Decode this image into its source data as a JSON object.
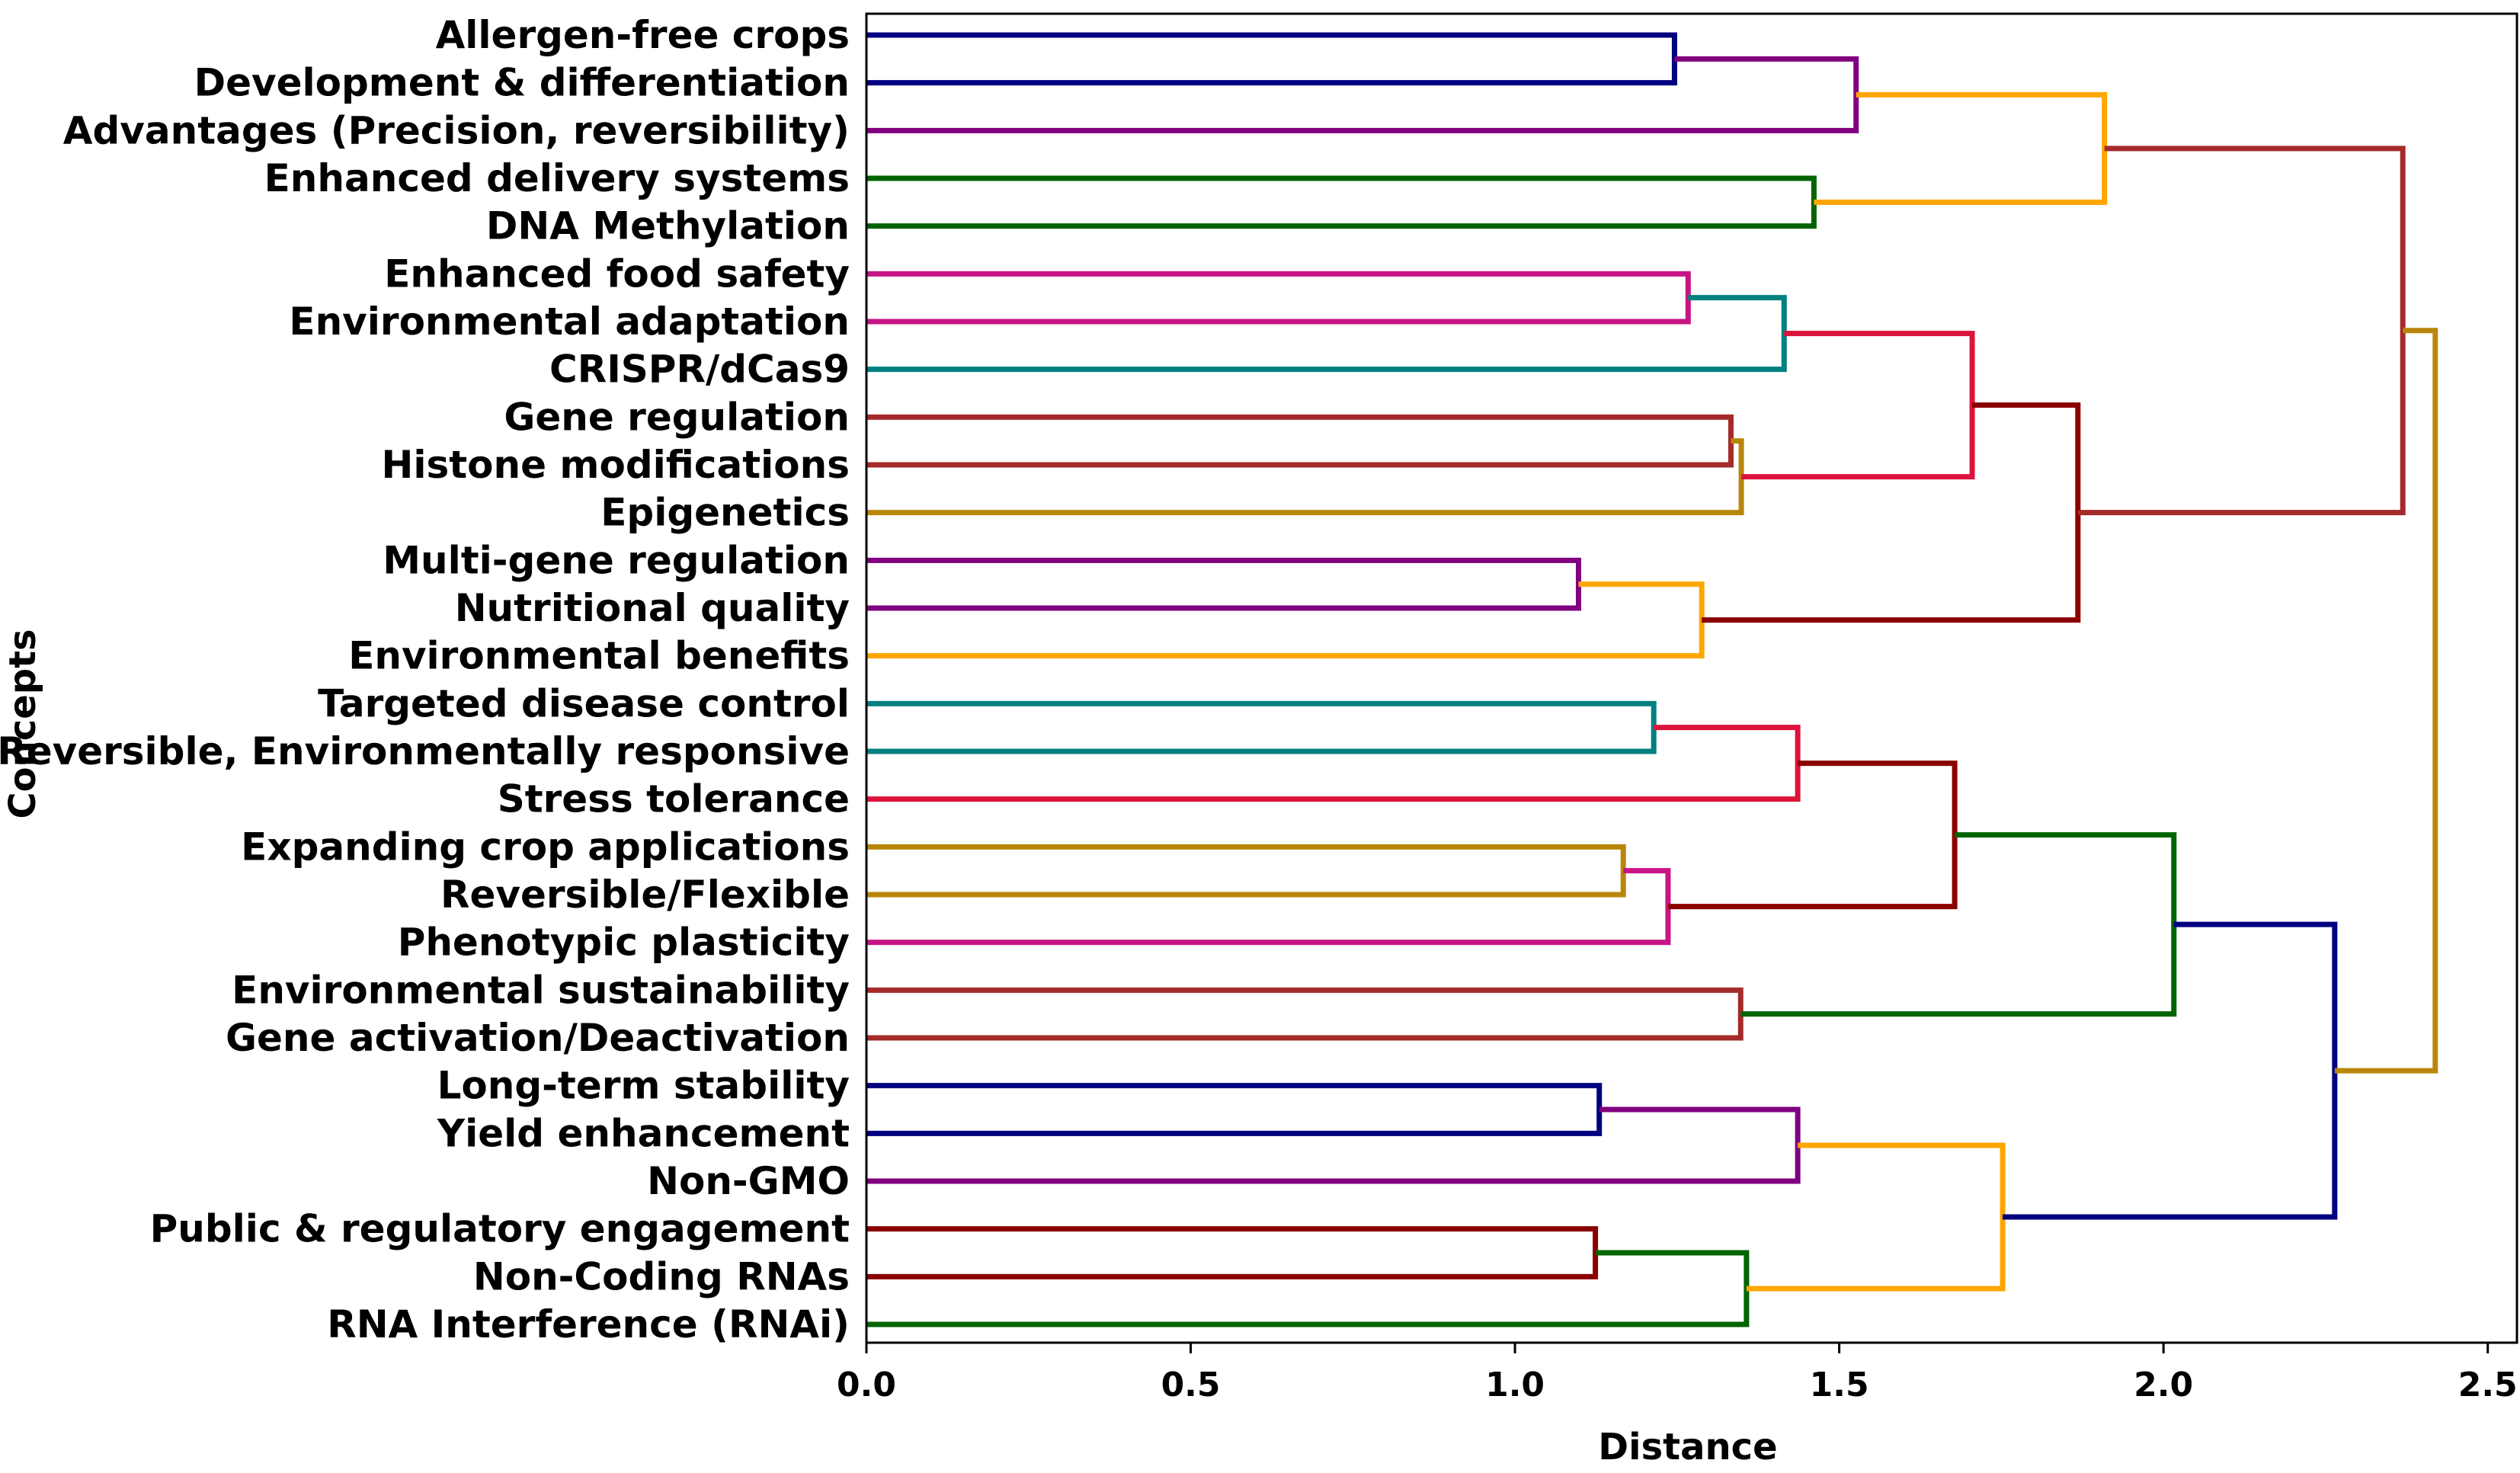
{
  "chart_data": {
    "type": "dendrogram",
    "orientation": "right",
    "xlabel": "Distance",
    "ylabel": "Concepts",
    "xlim": [
      0,
      2.545
    ],
    "xticks": [
      0.0,
      0.5,
      1.0,
      1.5,
      2.0,
      2.5
    ],
    "xtick_labels": [
      "0.0",
      "0.5",
      "1.0",
      "1.5",
      "2.0",
      "2.5"
    ],
    "grid": false,
    "leaves": [
      "Allergen-free crops",
      "Development & differentiation",
      "Advantages (Precision, reversibility)",
      "Enhanced delivery systems",
      "DNA Methylation",
      "Enhanced food safety",
      "Environmental adaptation",
      "CRISPR/dCas9",
      "Gene regulation",
      "Histone modifications",
      "Epigenetics",
      "Multi-gene regulation",
      "Nutritional quality",
      "Environmental benefits",
      "Targeted disease control",
      "Reversible, Environmentally responsive",
      "Stress tolerance",
      "Expanding crop applications",
      "Reversible/Flexible",
      "Phenotypic plasticity",
      "Environmental sustainability",
      "Gene activation/Deactivation",
      "Long-term stability",
      "Yield enhancement",
      "Non-GMO",
      "Public & regulatory engagement",
      "Non-Coding RNAs",
      "RNA Interference (RNAi)"
    ],
    "merges": [
      {
        "id": "A",
        "children": [
          "L0",
          "L1"
        ],
        "distance": 1.246,
        "color": "#000080"
      },
      {
        "id": "B",
        "children": [
          "A",
          "L2"
        ],
        "distance": 1.526,
        "color": "#800080"
      },
      {
        "id": "C",
        "children": [
          "L3",
          "L4"
        ],
        "distance": 1.461,
        "color": "#006400"
      },
      {
        "id": "D",
        "children": [
          "B",
          "C"
        ],
        "distance": 1.909,
        "color": "#FFA500"
      },
      {
        "id": "E",
        "children": [
          "L5",
          "L6"
        ],
        "distance": 1.267,
        "color": "#C71585"
      },
      {
        "id": "F",
        "children": [
          "E",
          "L7"
        ],
        "distance": 1.415,
        "color": "#008080"
      },
      {
        "id": "G",
        "children": [
          "L8",
          "L9"
        ],
        "distance": 1.333,
        "color": "#A52A2A"
      },
      {
        "id": "H",
        "children": [
          "G",
          "L10"
        ],
        "distance": 1.349,
        "color": "#B8860B"
      },
      {
        "id": "I",
        "children": [
          "F",
          "H"
        ],
        "distance": 1.705,
        "color": "#DC143C"
      },
      {
        "id": "J",
        "children": [
          "L11",
          "L12"
        ],
        "distance": 1.098,
        "color": "#800080"
      },
      {
        "id": "K",
        "children": [
          "J",
          "L13"
        ],
        "distance": 1.288,
        "color": "#FFA500"
      },
      {
        "id": "L",
        "children": [
          "I",
          "K"
        ],
        "distance": 1.868,
        "color": "#8B0000"
      },
      {
        "id": "M",
        "children": [
          "D",
          "L"
        ],
        "distance": 2.369,
        "color": "#A52A2A"
      },
      {
        "id": "N",
        "children": [
          "L14",
          "L15"
        ],
        "distance": 1.214,
        "color": "#008080"
      },
      {
        "id": "O",
        "children": [
          "N",
          "L16"
        ],
        "distance": 1.436,
        "color": "#DC143C"
      },
      {
        "id": "P",
        "children": [
          "L17",
          "L18"
        ],
        "distance": 1.167,
        "color": "#B8860B"
      },
      {
        "id": "Q",
        "children": [
          "P",
          "L19"
        ],
        "distance": 1.236,
        "color": "#C71585"
      },
      {
        "id": "R",
        "children": [
          "O",
          "Q"
        ],
        "distance": 1.678,
        "color": "#8B0000"
      },
      {
        "id": "S",
        "children": [
          "L20",
          "L21"
        ],
        "distance": 1.348,
        "color": "#A52A2A"
      },
      {
        "id": "T",
        "children": [
          "R",
          "S"
        ],
        "distance": 2.016,
        "color": "#006400"
      },
      {
        "id": "U",
        "children": [
          "L22",
          "L23"
        ],
        "distance": 1.13,
        "color": "#000080"
      },
      {
        "id": "V",
        "children": [
          "U",
          "L24"
        ],
        "distance": 1.436,
        "color": "#800080"
      },
      {
        "id": "W",
        "children": [
          "L25",
          "L26"
        ],
        "distance": 1.124,
        "color": "#8B0000"
      },
      {
        "id": "X",
        "children": [
          "W",
          "L27"
        ],
        "distance": 1.357,
        "color": "#006400"
      },
      {
        "id": "Y",
        "children": [
          "V",
          "X"
        ],
        "distance": 1.752,
        "color": "#FFA500"
      },
      {
        "id": "Z",
        "children": [
          "T",
          "Y"
        ],
        "distance": 2.264,
        "color": "#000080"
      },
      {
        "id": "ROOT",
        "children": [
          "M",
          "Z"
        ],
        "distance": 2.419,
        "color": "#B8860B"
      }
    ]
  }
}
